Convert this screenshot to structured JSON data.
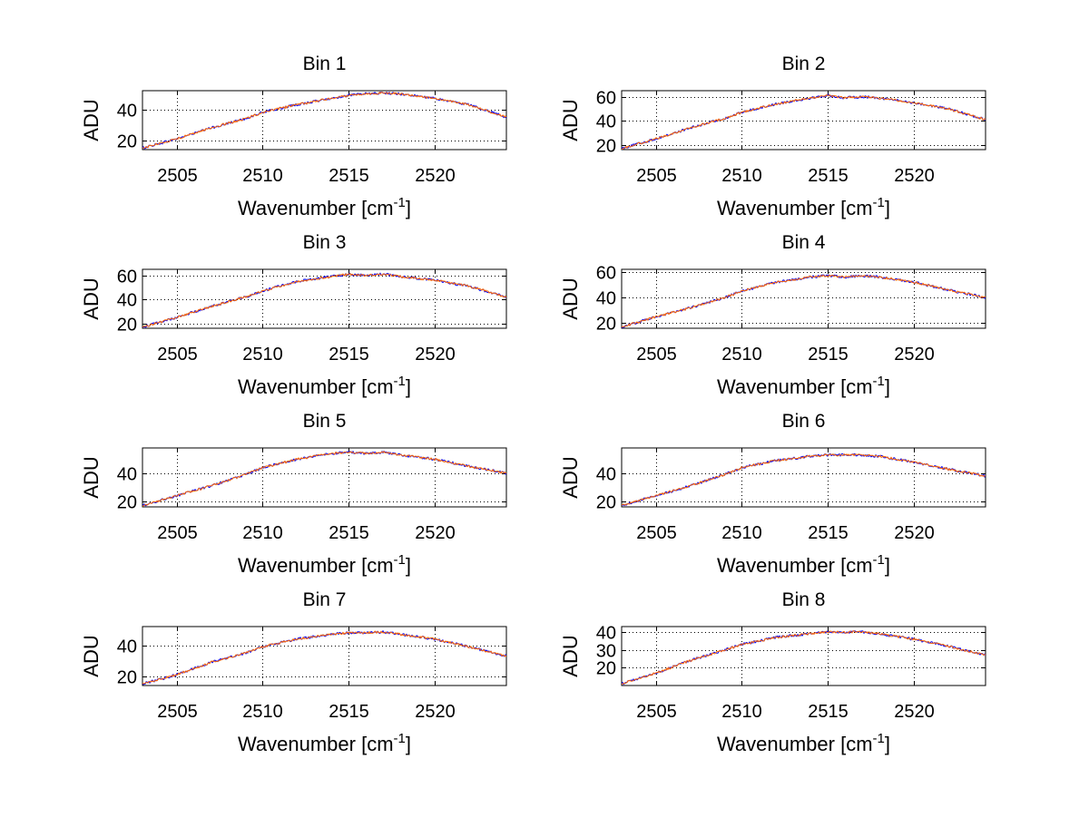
{
  "colors": {
    "series_1": "#0000ff",
    "series_2": "#ff6600"
  },
  "chart_data": [
    {
      "type": "line",
      "title": "Bin 1",
      "xlabel": "Wavenumber [cm",
      "xlabel_superscript": "-1",
      "xlabel_suffix": "]",
      "ylabel": "ADU",
      "xlim": [
        2503,
        2524.2
      ],
      "ylim": [
        14,
        52
      ],
      "xticks": [
        2505,
        2510,
        2515,
        2520
      ],
      "yticks": [
        20,
        40
      ],
      "grid": true,
      "x": [
        2503,
        2505,
        2507,
        2509,
        2510,
        2512,
        2514,
        2515,
        2516,
        2517,
        2518,
        2520,
        2522,
        2524.2
      ],
      "series": [
        {
          "color": "#0000ff",
          "values": [
            15,
            21,
            28,
            34,
            38,
            43,
            47,
            49,
            50,
            50.5,
            50,
            47,
            43,
            35
          ]
        },
        {
          "color": "#ff6600",
          "values": [
            15,
            21,
            28,
            34,
            38,
            43,
            47,
            49,
            50,
            50.5,
            50,
            47,
            43,
            35
          ]
        }
      ]
    },
    {
      "type": "line",
      "title": "Bin 2",
      "xlabel": "Wavenumber [cm",
      "xlabel_superscript": "-1",
      "xlabel_suffix": "]",
      "ylabel": "ADU",
      "xlim": [
        2503,
        2524.2
      ],
      "ylim": [
        16,
        65
      ],
      "xticks": [
        2505,
        2510,
        2515,
        2520
      ],
      "yticks": [
        20,
        40,
        60
      ],
      "grid": true,
      "x": [
        2503,
        2505,
        2507,
        2509,
        2510,
        2512,
        2514,
        2515,
        2516,
        2517,
        2518,
        2520,
        2522,
        2524.2
      ],
      "series": [
        {
          "color": "#0000ff",
          "values": [
            17,
            25,
            34,
            42,
            47,
            54,
            59,
            61,
            59,
            60,
            59,
            55,
            50,
            41
          ]
        },
        {
          "color": "#ff6600",
          "values": [
            17,
            25,
            34,
            42,
            47,
            54,
            59,
            61,
            59,
            60,
            59,
            55,
            50,
            41
          ]
        }
      ]
    },
    {
      "type": "line",
      "title": "Bin 3",
      "xlabel": "Wavenumber [cm",
      "xlabel_superscript": "-1",
      "xlabel_suffix": "]",
      "ylabel": "ADU",
      "xlim": [
        2503,
        2524.2
      ],
      "ylim": [
        16,
        65
      ],
      "xticks": [
        2505,
        2510,
        2515,
        2520
      ],
      "yticks": [
        20,
        40,
        60
      ],
      "grid": true,
      "x": [
        2503,
        2505,
        2507,
        2509,
        2510,
        2512,
        2514,
        2515,
        2516,
        2517,
        2518,
        2520,
        2522,
        2524.2
      ],
      "series": [
        {
          "color": "#0000ff",
          "values": [
            17,
            25,
            34,
            42,
            47,
            55,
            59,
            61,
            60,
            61,
            59,
            56,
            51,
            42
          ]
        },
        {
          "color": "#ff6600",
          "values": [
            17,
            25,
            34,
            42,
            47,
            55,
            59,
            61,
            60,
            61,
            59,
            56,
            51,
            42
          ]
        }
      ]
    },
    {
      "type": "line",
      "title": "Bin 4",
      "xlabel": "Wavenumber [cm",
      "xlabel_superscript": "-1",
      "xlabel_suffix": "]",
      "ylabel": "ADU",
      "xlim": [
        2503,
        2524.2
      ],
      "ylim": [
        16,
        62
      ],
      "xticks": [
        2505,
        2510,
        2515,
        2520
      ],
      "yticks": [
        20,
        40,
        60
      ],
      "grid": true,
      "x": [
        2503,
        2505,
        2507,
        2509,
        2510,
        2512,
        2514,
        2515,
        2516,
        2517,
        2518,
        2520,
        2522,
        2524.2
      ],
      "series": [
        {
          "color": "#0000ff",
          "values": [
            17,
            25,
            32,
            40,
            45,
            52,
            56,
            57,
            56,
            57,
            56,
            52,
            46,
            40
          ]
        },
        {
          "color": "#ff6600",
          "values": [
            17,
            25,
            32,
            40,
            45,
            52,
            56,
            57,
            56,
            57,
            56,
            52,
            46,
            40
          ]
        }
      ]
    },
    {
      "type": "line",
      "title": "Bin 5",
      "xlabel": "Wavenumber [cm",
      "xlabel_superscript": "-1",
      "xlabel_suffix": "]",
      "ylabel": "ADU",
      "xlim": [
        2503,
        2524.2
      ],
      "ylim": [
        16,
        58
      ],
      "xticks": [
        2505,
        2510,
        2515,
        2520
      ],
      "yticks": [
        20,
        40
      ],
      "grid": true,
      "x": [
        2503,
        2505,
        2507,
        2509,
        2510,
        2512,
        2514,
        2515,
        2516,
        2517,
        2518,
        2520,
        2522,
        2524.2
      ],
      "series": [
        {
          "color": "#0000ff",
          "values": [
            17,
            24,
            31,
            39,
            44,
            50,
            54,
            55,
            54,
            55,
            53,
            50,
            45,
            40
          ]
        },
        {
          "color": "#ff6600",
          "values": [
            17,
            24,
            31,
            39,
            44,
            50,
            54,
            55,
            54,
            55,
            53,
            50,
            45,
            40
          ]
        }
      ]
    },
    {
      "type": "line",
      "title": "Bin 6",
      "xlabel": "Wavenumber [cm",
      "xlabel_superscript": "-1",
      "xlabel_suffix": "]",
      "ylabel": "ADU",
      "xlim": [
        2503,
        2524.2
      ],
      "ylim": [
        16,
        58
      ],
      "xticks": [
        2505,
        2510,
        2515,
        2520
      ],
      "yticks": [
        20,
        40
      ],
      "grid": true,
      "x": [
        2503,
        2505,
        2507,
        2509,
        2510,
        2512,
        2514,
        2515,
        2516,
        2517,
        2518,
        2520,
        2522,
        2524.2
      ],
      "series": [
        {
          "color": "#0000ff",
          "values": [
            17,
            24,
            31,
            39,
            44,
            49,
            52,
            53,
            53,
            53,
            52,
            48,
            43,
            38
          ]
        },
        {
          "color": "#ff6600",
          "values": [
            17,
            24,
            31,
            39,
            44,
            49,
            52,
            53,
            53,
            53,
            52,
            48,
            43,
            38
          ]
        }
      ]
    },
    {
      "type": "line",
      "title": "Bin 7",
      "xlabel": "Wavenumber [cm",
      "xlabel_superscript": "-1",
      "xlabel_suffix": "]",
      "ylabel": "ADU",
      "xlim": [
        2503,
        2524.2
      ],
      "ylim": [
        14,
        52
      ],
      "xticks": [
        2505,
        2510,
        2515,
        2520
      ],
      "yticks": [
        20,
        40
      ],
      "grid": true,
      "x": [
        2503,
        2505,
        2507,
        2509,
        2510,
        2512,
        2514,
        2515,
        2516,
        2517,
        2518,
        2520,
        2522,
        2524.2
      ],
      "series": [
        {
          "color": "#0000ff",
          "values": [
            15,
            21,
            29,
            35,
            39,
            44,
            47,
            48,
            48,
            48.5,
            47,
            44,
            39,
            33
          ]
        },
        {
          "color": "#ff6600",
          "values": [
            15,
            21,
            29,
            35,
            39,
            44,
            47,
            48,
            48,
            48.5,
            47,
            44,
            39,
            33
          ]
        }
      ]
    },
    {
      "type": "line",
      "title": "Bin 8",
      "xlabel": "Wavenumber [cm",
      "xlabel_superscript": "-1",
      "xlabel_suffix": "]",
      "ylabel": "ADU",
      "xlim": [
        2503,
        2524.2
      ],
      "ylim": [
        10,
        43
      ],
      "xticks": [
        2505,
        2510,
        2515,
        2520
      ],
      "yticks": [
        20,
        30,
        40
      ],
      "grid": true,
      "x": [
        2503,
        2505,
        2507,
        2509,
        2510,
        2512,
        2514,
        2515,
        2516,
        2517,
        2518,
        2520,
        2522,
        2524.2
      ],
      "series": [
        {
          "color": "#0000ff",
          "values": [
            11,
            17,
            24,
            30,
            33,
            37,
            39,
            40,
            40,
            40,
            39,
            36,
            32,
            27
          ]
        },
        {
          "color": "#ff6600",
          "values": [
            11,
            17,
            24,
            30,
            33,
            37,
            39,
            40,
            40,
            40,
            39,
            36,
            32,
            27
          ]
        }
      ]
    }
  ]
}
